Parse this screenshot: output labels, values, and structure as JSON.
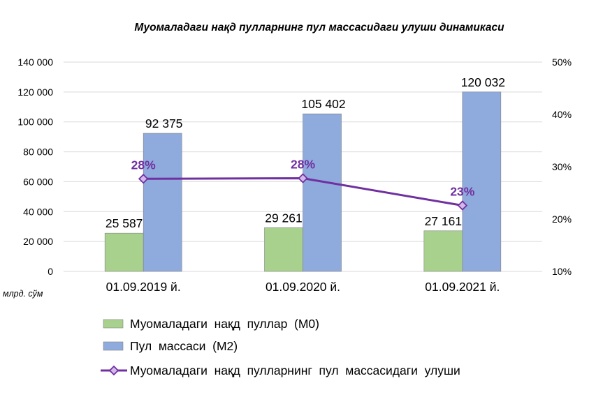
{
  "chart_data": {
    "type": "bar",
    "title": "Муомаладаги нақд пулларнинг пул массасидаги улуши динамикаси",
    "categories": [
      "01.09.2019 й.",
      "01.09.2020 й.",
      "01.09.2021 й."
    ],
    "series": [
      {
        "name": "Муомаладаги  нақд  пуллар  (М0)",
        "type": "bar",
        "axis": "left",
        "color": "#a9d18e",
        "values": [
          25587,
          29261,
          27161
        ],
        "labels": [
          "25 587",
          "29 261",
          "27 161"
        ]
      },
      {
        "name": "Пул  массаси  (М2)",
        "type": "bar",
        "axis": "left",
        "color": "#8faadc",
        "values": [
          92375,
          105402,
          120032
        ],
        "labels": [
          "92 375",
          "105 402",
          "120 032"
        ]
      },
      {
        "name": "Муомаладаги  нақд  пулларнинг  пул  массасидаги  улуши",
        "type": "line",
        "axis": "right",
        "color": "#7030a0",
        "marker": "diamond",
        "values": [
          27.7,
          27.8,
          22.6
        ],
        "labels": [
          "28%",
          "28%",
          "23%"
        ]
      }
    ],
    "y_left": {
      "min": 0,
      "max": 140000,
      "step": 20000,
      "ticks": [
        "0",
        "20 000",
        "40 000",
        "60 000",
        "80 000",
        "100 000",
        "120 000",
        "140 000"
      ],
      "unit": "млрд. сўм"
    },
    "y_right": {
      "min": 10,
      "max": 50,
      "step": 10,
      "ticks": [
        "10%",
        "20%",
        "30%",
        "40%",
        "50%"
      ]
    },
    "grid": true,
    "legend_position": "bottom-left"
  }
}
